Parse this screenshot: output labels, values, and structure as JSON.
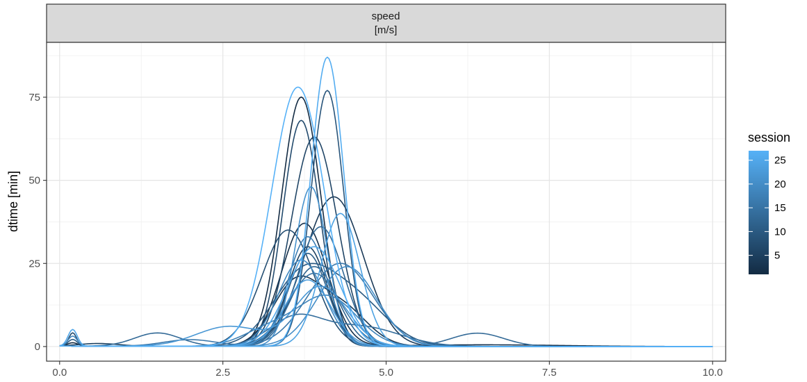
{
  "chart_data": {
    "type": "line",
    "facet_label_line1": "speed",
    "facet_label_line2": "[m/s]",
    "xlabel": "",
    "ylabel": "dtime [min]",
    "xlim": [
      -0.2,
      10.2
    ],
    "ylim": [
      -4.4,
      91.5
    ],
    "x_ticks": [
      0.0,
      2.5,
      5.0,
      7.5,
      10.0
    ],
    "x_tick_labels": [
      "0.0",
      "2.5",
      "5.0",
      "7.5",
      "10.0"
    ],
    "y_ticks": [
      0,
      25,
      50,
      75
    ],
    "y_tick_labels": [
      "0",
      "25",
      "50",
      "75"
    ],
    "grid": true,
    "legend": {
      "title": "session",
      "placement": "right",
      "min": 1,
      "max": 27,
      "breaks": [
        5,
        10,
        15,
        20,
        25
      ],
      "break_labels": [
        "5",
        "10",
        "15",
        "20",
        "25"
      ],
      "color_low": "#132B43",
      "color_high": "#56B1F7"
    },
    "series_components_note_free": true,
    "series": [
      {
        "session": 1,
        "bumps": [
          [
            3.7,
            75,
            0.3
          ],
          [
            0.2,
            1,
            0.08
          ]
        ]
      },
      {
        "session": 2,
        "bumps": [
          [
            3.75,
            37,
            0.35
          ],
          [
            6.5,
            0.5,
            1.2
          ]
        ]
      },
      {
        "session": 3,
        "bumps": [
          [
            3.6,
            18,
            0.35
          ],
          [
            4.3,
            12,
            0.4
          ]
        ]
      },
      {
        "session": 4,
        "bumps": [
          [
            4.2,
            45,
            0.45
          ]
        ]
      },
      {
        "session": 5,
        "bumps": [
          [
            3.8,
            30,
            0.3
          ],
          [
            0.6,
            0.8,
            0.3
          ]
        ]
      },
      {
        "session": 6,
        "bumps": [
          [
            3.9,
            63,
            0.35
          ]
        ]
      },
      {
        "session": 7,
        "bumps": [
          [
            3.7,
            68,
            0.28
          ],
          [
            0.2,
            4,
            0.06
          ]
        ]
      },
      {
        "session": 8,
        "bumps": [
          [
            3.5,
            35,
            0.4
          ]
        ]
      },
      {
        "session": 9,
        "bumps": [
          [
            4.1,
            77,
            0.25
          ]
        ]
      },
      {
        "session": 10,
        "bumps": [
          [
            3.7,
            20,
            0.45
          ],
          [
            4.5,
            14,
            0.5
          ]
        ]
      },
      {
        "session": 11,
        "bumps": [
          [
            3.8,
            28,
            0.3
          ],
          [
            0.2,
            2,
            0.07
          ]
        ]
      },
      {
        "session": 12,
        "bumps": [
          [
            3.9,
            24,
            0.35
          ]
        ]
      },
      {
        "session": 13,
        "bumps": [
          [
            4.0,
            36,
            0.35
          ],
          [
            1.5,
            4,
            0.35
          ],
          [
            6.4,
            4,
            0.4
          ]
        ]
      },
      {
        "session": 14,
        "bumps": [
          [
            3.6,
            8,
            0.4
          ],
          [
            4.6,
            6,
            0.6
          ]
        ]
      },
      {
        "session": 15,
        "bumps": [
          [
            3.9,
            22,
            0.4
          ]
        ]
      },
      {
        "session": 16,
        "bumps": [
          [
            4.3,
            25,
            0.5
          ],
          [
            2.0,
            2,
            0.4
          ]
        ]
      },
      {
        "session": 17,
        "bumps": [
          [
            3.8,
            33,
            0.3
          ]
        ]
      },
      {
        "session": 18,
        "bumps": [
          [
            4.1,
            15,
            0.45
          ],
          [
            3.2,
            5,
            0.4
          ]
        ]
      },
      {
        "session": 19,
        "bumps": [
          [
            3.7,
            26,
            0.35
          ],
          [
            0.2,
            3,
            0.07
          ]
        ]
      },
      {
        "session": 20,
        "bumps": [
          [
            4.4,
            24,
            0.45
          ]
        ]
      },
      {
        "session": 21,
        "bumps": [
          [
            3.85,
            48,
            0.25
          ]
        ]
      },
      {
        "session": 22,
        "bumps": [
          [
            4.0,
            18,
            0.4
          ],
          [
            2.6,
            6,
            0.5
          ]
        ]
      },
      {
        "session": 23,
        "bumps": [
          [
            3.8,
            20,
            0.35
          ]
        ]
      },
      {
        "session": 24,
        "bumps": [
          [
            4.3,
            40,
            0.3
          ]
        ]
      },
      {
        "session": 25,
        "bumps": [
          [
            3.9,
            30,
            0.4
          ],
          [
            0.2,
            5,
            0.07
          ]
        ]
      },
      {
        "session": 26,
        "bumps": [
          [
            4.1,
            87,
            0.25
          ]
        ]
      },
      {
        "session": 27,
        "bumps": [
          [
            3.65,
            78,
            0.4
          ]
        ]
      }
    ]
  }
}
